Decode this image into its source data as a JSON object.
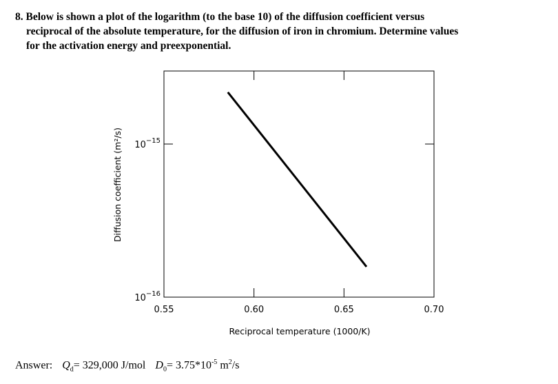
{
  "problem": {
    "number": "8.",
    "line1": "Below is shown a plot of the logarithm (to the base 10) of the diffusion coefficient versus",
    "line2": "reciprocal of the absolute temperature, for the diffusion of iron in chromium. Determine values",
    "line3": "for the activation energy and preexponential."
  },
  "chart_data": {
    "type": "line",
    "title": "",
    "xlabel": "Reciprocal temperature (1000/K)",
    "ylabel": "Diffusion coefficient (m²/s)",
    "xlim": [
      0.55,
      0.7
    ],
    "ylim": [
      1e-16,
      3e-15
    ],
    "yscale": "log",
    "xticks": [
      0.55,
      0.6,
      0.65,
      0.7
    ],
    "xtick_labels": [
      "0.55",
      "0.60",
      "0.65",
      "0.70"
    ],
    "yticks": [
      {
        "base": "10",
        "exponent": "−16",
        "value": 1e-16
      },
      {
        "base": "10",
        "exponent": "−15",
        "value": 1e-15
      }
    ],
    "series": [
      {
        "x": [
          0.5855,
          0.6625
        ],
        "y": [
          2.18e-15,
          1.58e-16
        ]
      }
    ],
    "grid": false,
    "color": "#000000"
  },
  "answer": {
    "label": "Answer:",
    "q_symbol": "Q",
    "q_sub": "d",
    "q_value": "= 329,000 J/mol",
    "d_symbol": "D",
    "d_sub": "0",
    "d_value": "= 3.75*10",
    "d_exp": "-5",
    "d_unit": " m",
    "d_unit_exp": "2",
    "d_unit_tail": "/s"
  }
}
